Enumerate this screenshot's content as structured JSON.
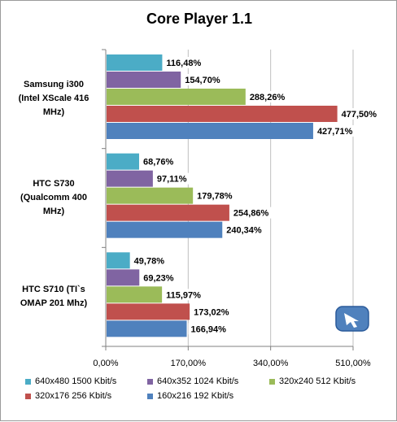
{
  "chart_data": {
    "type": "bar",
    "orientation": "horizontal",
    "title": "Core Player 1.1",
    "categories": [
      [
        "Samsung i300",
        "(Intel XScale 416",
        "MHz)"
      ],
      [
        "HTC S730",
        "(Qualcomm 400",
        "MHz)"
      ],
      [
        "HTC S710  (TI`s",
        "OMAP 201 Mhz)"
      ]
    ],
    "series": [
      {
        "name": "640x480 1500 Kbit/s",
        "color": "#4bacc6",
        "values": [
          116.48,
          68.76,
          49.78
        ],
        "labels": [
          "116,48%",
          "68,76%",
          "49,78%"
        ]
      },
      {
        "name": "640x352 1024 Kbit/s",
        "color": "#8064a2",
        "values": [
          154.7,
          97.11,
          69.23
        ],
        "labels": [
          "154,70%",
          "97,11%",
          "69,23%"
        ]
      },
      {
        "name": "320x240 512 Kbit/s",
        "color": "#9bbb59",
        "values": [
          288.26,
          179.78,
          115.97
        ],
        "labels": [
          "288,26%",
          "179,78%",
          "115,97%"
        ]
      },
      {
        "name": "320x176 256 Kbit/s",
        "color": "#c0504d",
        "values": [
          477.5,
          254.86,
          173.02
        ],
        "labels": [
          "477,50%",
          "254,86%",
          "173,02%"
        ]
      },
      {
        "name": "160x216 192 Kbit/s",
        "color": "#4f81bd",
        "values": [
          427.71,
          240.34,
          166.94
        ],
        "labels": [
          "427,71%",
          "240,34%",
          "166,94%"
        ]
      }
    ],
    "xlim": [
      0,
      510
    ],
    "xticks": [
      0,
      170,
      340,
      510
    ],
    "xtick_labels": [
      "0,00%",
      "170,00%",
      "340,00%",
      "510,00%"
    ],
    "grid": true,
    "legend": "bottom"
  }
}
